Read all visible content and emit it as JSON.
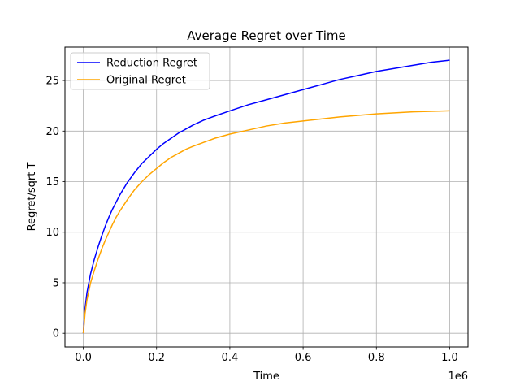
{
  "chart_data": {
    "type": "line",
    "title": "Average Regret over Time",
    "xlabel": "Time",
    "ylabel": "Regret/sqrt T",
    "x_scale_label": "1e6",
    "xlim": [
      -0.05,
      1.05
    ],
    "ylim": [
      -1.35,
      28.3
    ],
    "x_ticks": [
      0.0,
      0.2,
      0.4,
      0.6,
      0.8,
      1.0
    ],
    "x_tick_labels": [
      "0.0",
      "0.2",
      "0.4",
      "0.6",
      "0.8",
      "1.0"
    ],
    "y_ticks": [
      0,
      5,
      10,
      15,
      20,
      25
    ],
    "y_tick_labels": [
      "0",
      "5",
      "10",
      "15",
      "20",
      "25"
    ],
    "grid": true,
    "legend_position": "top-left",
    "x": [
      0.0,
      0.005,
      0.01,
      0.02,
      0.03,
      0.04,
      0.05,
      0.06,
      0.07,
      0.08,
      0.09,
      0.1,
      0.12,
      0.14,
      0.16,
      0.18,
      0.2,
      0.22,
      0.24,
      0.26,
      0.28,
      0.3,
      0.33,
      0.36,
      0.4,
      0.45,
      0.5,
      0.55,
      0.6,
      0.65,
      0.7,
      0.75,
      0.8,
      0.85,
      0.9,
      0.95,
      1.0
    ],
    "series": [
      {
        "name": "Reduction Regret",
        "color": "#0000ff",
        "values": [
          0.0,
          2.5,
          4.0,
          5.9,
          7.3,
          8.5,
          9.6,
          10.6,
          11.5,
          12.3,
          13.0,
          13.7,
          14.9,
          15.9,
          16.8,
          17.5,
          18.2,
          18.8,
          19.3,
          19.8,
          20.2,
          20.6,
          21.1,
          21.5,
          22.0,
          22.6,
          23.1,
          23.6,
          24.1,
          24.6,
          25.1,
          25.5,
          25.9,
          26.2,
          26.5,
          26.8,
          27.0
        ]
      },
      {
        "name": "Original Regret",
        "color": "#ffa500",
        "values": [
          0.0,
          2.0,
          3.3,
          5.0,
          6.2,
          7.3,
          8.3,
          9.2,
          10.0,
          10.8,
          11.5,
          12.1,
          13.2,
          14.2,
          15.0,
          15.7,
          16.3,
          16.9,
          17.4,
          17.8,
          18.2,
          18.5,
          18.9,
          19.3,
          19.7,
          20.1,
          20.5,
          20.8,
          21.0,
          21.2,
          21.4,
          21.55,
          21.7,
          21.8,
          21.9,
          21.95,
          22.0
        ]
      }
    ]
  }
}
